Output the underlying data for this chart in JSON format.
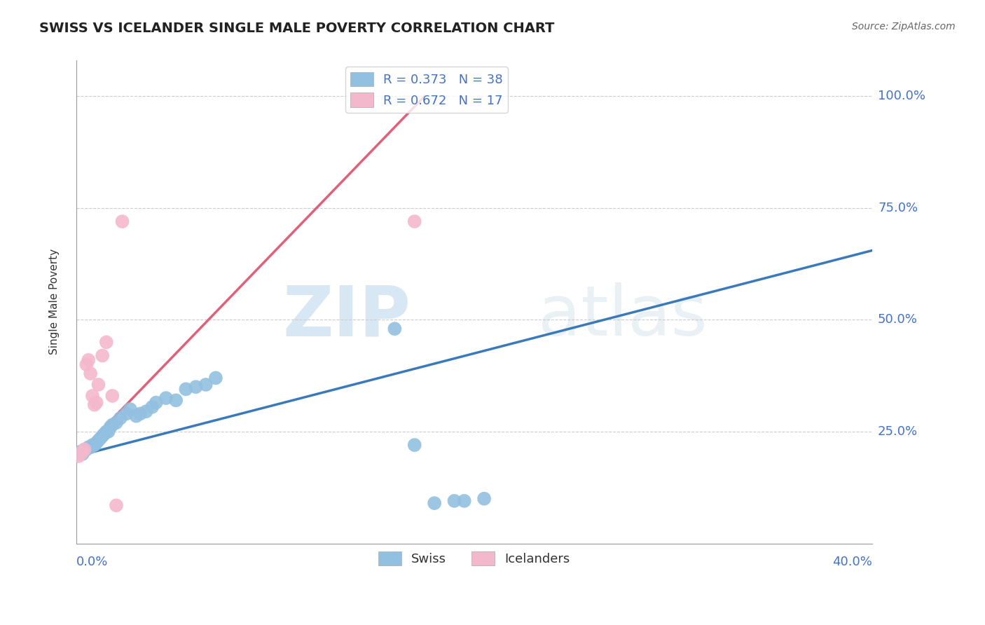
{
  "title": "SWISS VS ICELANDER SINGLE MALE POVERTY CORRELATION CHART",
  "source": "Source: ZipAtlas.com",
  "ylabel": "Single Male Poverty",
  "swiss_color": "#92c0e0",
  "icelander_color": "#f4b8cc",
  "swiss_line_color": "#3a7aba",
  "icelander_line_color": "#e0607a",
  "legend_swiss": "Swiss",
  "legend_icelander": "Icelanders",
  "swiss_R": 0.373,
  "swiss_N": 38,
  "icelander_R": 0.672,
  "icelander_N": 17,
  "xlim": [
    0.0,
    0.4
  ],
  "ylim": [
    0.0,
    1.08
  ],
  "y_tick_values": [
    0.25,
    0.5,
    0.75,
    1.0
  ],
  "y_tick_labels": [
    "25.0%",
    "50.0%",
    "75.0%",
    "100.0%"
  ],
  "background_color": "#ffffff",
  "grid_color": "#cccccc",
  "title_color": "#222222",
  "axis_label_color": "#4472c4",
  "swiss_line_x0": 0.0,
  "swiss_line_y0": 0.195,
  "swiss_line_x1": 0.4,
  "swiss_line_y1": 0.655,
  "icelander_line_x0": 0.0,
  "icelander_line_y0": 0.195,
  "icelander_line_x1": 0.175,
  "icelander_line_y1": 1.0,
  "swiss_x": [
    0.002,
    0.003,
    0.004,
    0.005,
    0.006,
    0.007,
    0.008,
    0.009,
    0.01,
    0.011,
    0.012,
    0.013,
    0.014,
    0.015,
    0.016,
    0.017,
    0.018,
    0.02,
    0.022,
    0.025,
    0.027,
    0.03,
    0.032,
    0.035,
    0.038,
    0.04,
    0.045,
    0.05,
    0.055,
    0.06,
    0.065,
    0.07,
    0.16,
    0.17,
    0.18,
    0.19,
    0.195,
    0.205
  ],
  "swiss_y": [
    0.205,
    0.2,
    0.21,
    0.21,
    0.215,
    0.215,
    0.22,
    0.22,
    0.225,
    0.23,
    0.235,
    0.24,
    0.245,
    0.25,
    0.25,
    0.26,
    0.265,
    0.27,
    0.28,
    0.29,
    0.3,
    0.285,
    0.29,
    0.295,
    0.305,
    0.315,
    0.325,
    0.32,
    0.345,
    0.35,
    0.355,
    0.37,
    0.48,
    0.22,
    0.09,
    0.095,
    0.095,
    0.1
  ],
  "icelander_x": [
    0.001,
    0.002,
    0.003,
    0.004,
    0.005,
    0.006,
    0.007,
    0.008,
    0.009,
    0.01,
    0.011,
    0.013,
    0.015,
    0.018,
    0.02,
    0.023,
    0.17
  ],
  "icelander_y": [
    0.195,
    0.2,
    0.205,
    0.21,
    0.4,
    0.41,
    0.38,
    0.33,
    0.31,
    0.315,
    0.355,
    0.42,
    0.45,
    0.33,
    0.085,
    0.72,
    0.72
  ]
}
